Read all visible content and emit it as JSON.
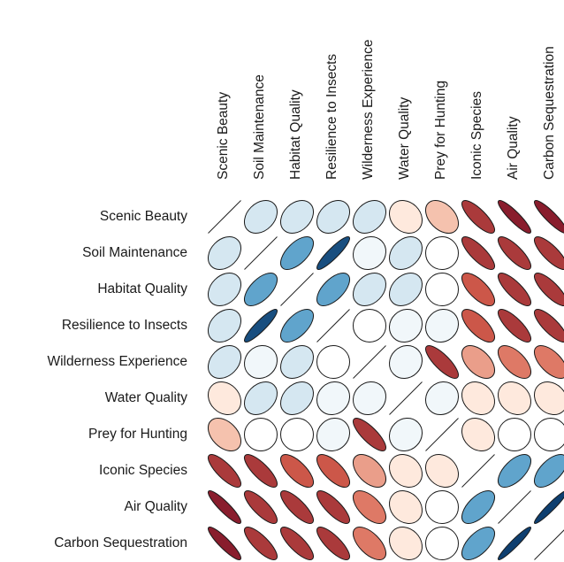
{
  "chart_data": {
    "type": "heatmap",
    "style": "correlation-ellipse",
    "diagonal": "line",
    "variables": [
      "Scenic Beauty",
      "Soil Maintenance",
      "Habitat Quality",
      "Resilience to Insects",
      "Wilderness Experience",
      "Water Quality",
      "Prey for Hunting",
      "Iconic Species",
      "Air Quality",
      "Carbon Sequestration"
    ],
    "matrix": [
      [
        1.0,
        0.3,
        0.3,
        0.3,
        0.3,
        -0.2,
        -0.4,
        -0.8,
        -0.9,
        -0.9
      ],
      [
        0.3,
        1.0,
        0.6,
        0.9,
        0.1,
        0.3,
        0.0,
        -0.8,
        -0.8,
        -0.8
      ],
      [
        0.3,
        0.6,
        1.0,
        0.6,
        0.3,
        0.3,
        0.0,
        -0.7,
        -0.8,
        -0.8
      ],
      [
        0.3,
        0.9,
        0.6,
        1.0,
        0.0,
        0.1,
        0.1,
        -0.7,
        -0.8,
        -0.8
      ],
      [
        0.3,
        0.1,
        0.3,
        0.0,
        1.0,
        0.1,
        -0.8,
        -0.5,
        -0.6,
        -0.6
      ],
      [
        -0.2,
        0.3,
        0.3,
        0.1,
        0.1,
        1.0,
        0.1,
        -0.2,
        -0.2,
        -0.2
      ],
      [
        -0.4,
        0.0,
        0.0,
        0.1,
        -0.8,
        0.1,
        1.0,
        -0.2,
        0.0,
        0.0
      ],
      [
        -0.8,
        -0.8,
        -0.7,
        -0.7,
        -0.5,
        -0.2,
        -0.2,
        1.0,
        0.6,
        0.6
      ],
      [
        -0.9,
        -0.8,
        -0.8,
        -0.8,
        -0.6,
        -0.2,
        0.0,
        0.6,
        1.0,
        0.95
      ],
      [
        -0.9,
        -0.8,
        -0.8,
        -0.8,
        -0.6,
        -0.2,
        0.0,
        0.6,
        0.95,
        1.0
      ]
    ],
    "colors": {
      "strong_positive": "#053061",
      "positive": "#4393c3",
      "weak_positive": "#d1e5f0",
      "zero": "#ffffff",
      "weak_negative": "#fddbc7",
      "negative": "#d6604d",
      "strong_negative": "#67001f"
    }
  }
}
